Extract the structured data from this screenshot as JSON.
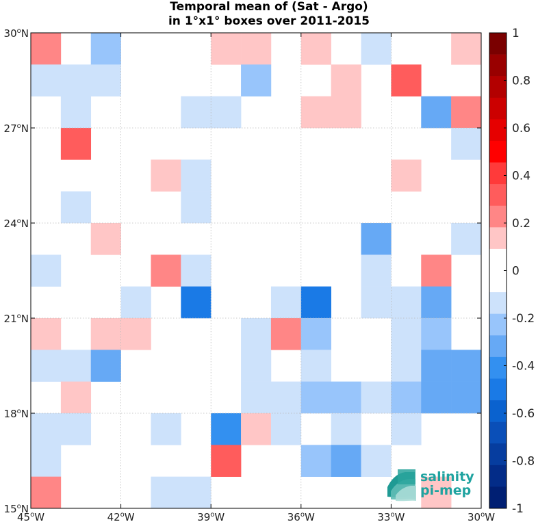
{
  "chart_data": {
    "type": "heatmap",
    "title": "Temporal mean of (Sat - Argo)",
    "subtitle": "in 1°x1° boxes over 2011-2015",
    "x_ticks": [
      "45°W",
      "42°W",
      "39°W",
      "36°W",
      "33°W",
      "30°W"
    ],
    "y_ticks": [
      "30°N",
      "27°N",
      "24°N",
      "21°N",
      "18°N",
      "15°N"
    ],
    "x_range_lon": [
      -45,
      -30
    ],
    "y_range_lat": [
      15,
      30
    ],
    "grid": true,
    "colorbar": {
      "range": [
        -1,
        1
      ],
      "ticks": [
        "1",
        "0.8",
        "0.6",
        "0.4",
        "0.2",
        "0",
        "-0.2",
        "-0.4",
        "-0.6",
        "-0.8",
        "-1"
      ],
      "colors": [
        "#7a0000",
        "#990000",
        "#b30000",
        "#cc0000",
        "#e60000",
        "#ff0000",
        "#ff3a3a",
        "#ff5c5c",
        "#ff8686",
        "#ffc6c6",
        "#ffffff",
        "#ffffff",
        "#cde2fb",
        "#98c5fb",
        "#66a9f5",
        "#3390f0",
        "#1a7ae6",
        "#0a62cf",
        "#0a4fb8",
        "#063d9f",
        "#032c88",
        "#001f73"
      ],
      "position": "right"
    },
    "columns_lon_west_edge": [
      -45,
      -44,
      -43,
      -42,
      -41,
      -40,
      -39,
      -38,
      -37,
      -36,
      -35,
      -34,
      -33,
      -32,
      -31
    ],
    "rows_lat_north_edge": [
      30,
      29,
      28,
      27,
      26,
      25,
      24,
      23,
      22,
      21,
      20,
      19,
      18,
      17,
      16
    ],
    "values": [
      [
        0.25,
        0,
        -0.25,
        0,
        0,
        0,
        0.15,
        0.15,
        0,
        0.15,
        0,
        -0.1,
        0,
        0,
        0.15
      ],
      [
        -0.1,
        -0.1,
        -0.1,
        0,
        0,
        0,
        0,
        -0.25,
        0,
        0,
        0.15,
        0,
        0.3,
        0,
        0
      ],
      [
        0,
        -0.1,
        0,
        0,
        0,
        -0.1,
        -0.1,
        0,
        0,
        0.15,
        0.15,
        0,
        0,
        -0.35,
        0.2
      ],
      [
        0,
        0.3,
        0,
        0,
        0,
        0,
        0,
        0,
        0,
        0,
        0,
        0,
        0,
        0,
        -0.1
      ],
      [
        0,
        0,
        0,
        0,
        0.15,
        -0.1,
        0,
        0,
        0,
        0,
        0,
        0,
        0.15,
        0,
        0
      ],
      [
        0,
        -0.1,
        0,
        0,
        0,
        -0.1,
        0,
        0,
        0,
        0,
        0,
        0,
        0,
        0,
        0
      ],
      [
        0,
        0,
        0.15,
        0,
        0,
        0,
        0,
        0,
        0,
        0,
        0,
        -0.3,
        0,
        0,
        -0.1
      ],
      [
        -0.1,
        0,
        0,
        0,
        0.2,
        -0.15,
        0,
        0,
        0,
        0,
        0,
        -0.1,
        0,
        0.2,
        0
      ],
      [
        0,
        0,
        0,
        -0.1,
        0,
        -0.5,
        0,
        0,
        -0.1,
        -0.5,
        0,
        -0.1,
        -0.1,
        -0.3,
        0
      ],
      [
        0.15,
        0,
        0.15,
        0.15,
        0,
        0,
        0,
        -0.1,
        0.2,
        -0.25,
        0,
        0,
        -0.1,
        -0.25,
        0
      ],
      [
        -0.1,
        -0.1,
        -0.3,
        0,
        0,
        0,
        0,
        -0.1,
        0,
        -0.1,
        0,
        0,
        -0.1,
        -0.3,
        -0.3
      ],
      [
        0,
        0.15,
        0,
        0,
        0,
        0,
        0,
        -0.1,
        -0.1,
        -0.25,
        -0.25,
        -0.1,
        -0.25,
        -0.3,
        -0.3
      ],
      [
        -0.1,
        -0.1,
        0,
        0,
        -0.1,
        0,
        -0.4,
        0.15,
        -0.1,
        0,
        -0.1,
        0,
        -0.1,
        0,
        0
      ],
      [
        -0.1,
        0,
        0,
        0,
        0,
        0,
        0.3,
        0,
        0,
        -0.25,
        -0.35,
        -0.1,
        0,
        0,
        0
      ],
      [
        0.25,
        0,
        0,
        0,
        -0.1,
        -0.1,
        0,
        0,
        0,
        0,
        0,
        0,
        0,
        0.15,
        0
      ]
    ]
  },
  "logo": {
    "line1": "salinity",
    "line2": "pi-mep",
    "color": "#1fa3a0"
  }
}
